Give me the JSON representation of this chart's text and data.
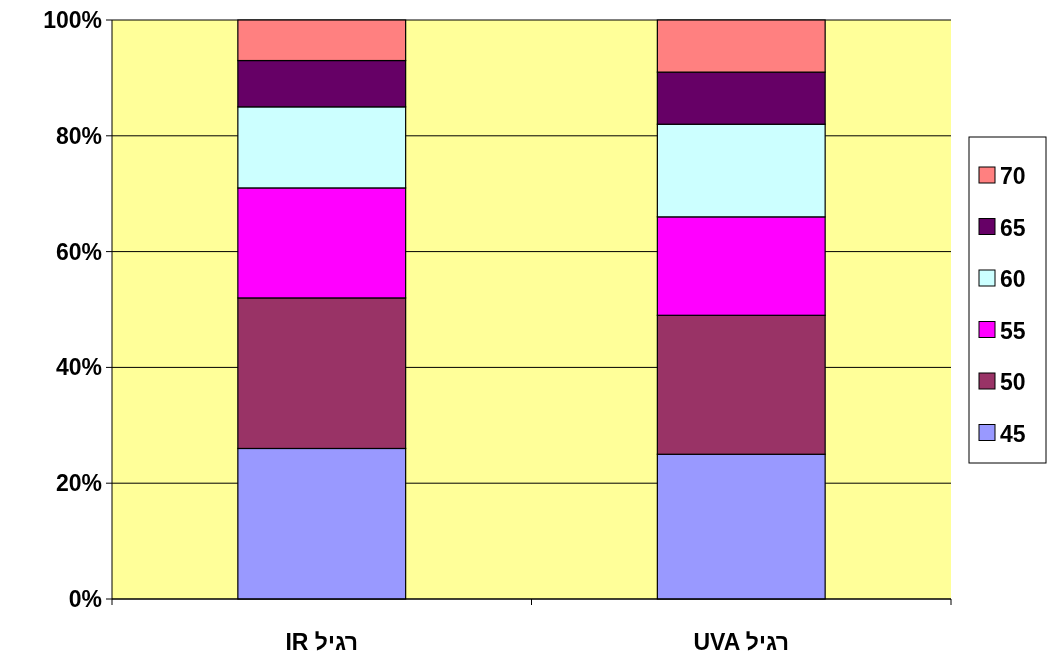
{
  "chart_data": {
    "type": "bar",
    "stacked": true,
    "categories": [
      "IR רגיל",
      "UVA רגיל"
    ],
    "series": [
      {
        "name": "45",
        "color": "#9999ff",
        "values": [
          26,
          25
        ]
      },
      {
        "name": "50",
        "color": "#993366",
        "values": [
          26,
          24
        ]
      },
      {
        "name": "55",
        "color": "#ff00ff",
        "values": [
          19,
          17
        ]
      },
      {
        "name": "60",
        "color": "#ccffff",
        "values": [
          14,
          16
        ]
      },
      {
        "name": "65",
        "color": "#660066",
        "values": [
          8,
          9
        ]
      },
      {
        "name": "70",
        "color": "#ff8080",
        "values": [
          7,
          9
        ]
      }
    ],
    "ylim": [
      0,
      100
    ],
    "yticks": [
      {
        "value": 0,
        "label": "0%"
      },
      {
        "value": 20,
        "label": "20%"
      },
      {
        "value": 40,
        "label": "40%"
      },
      {
        "value": 60,
        "label": "60%"
      },
      {
        "value": 80,
        "label": "80%"
      },
      {
        "value": 100,
        "label": "100%"
      }
    ],
    "grid": "y",
    "legend": "right"
  }
}
